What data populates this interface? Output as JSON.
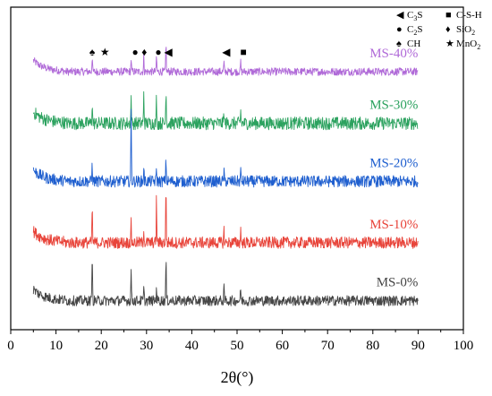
{
  "chart_data": {
    "type": "line",
    "xlabel": "2θ(°)",
    "ylabel": "",
    "title": "",
    "xlim": [
      0,
      100
    ],
    "x_ticks": [
      0,
      10,
      20,
      30,
      40,
      50,
      60,
      70,
      80,
      90,
      100
    ],
    "y_ticks_shown": false,
    "grid": false,
    "x_range_measured": [
      5,
      90
    ],
    "series": [
      {
        "name": "MS-40%",
        "color": "#b06ad8",
        "baseline": 0.8,
        "noise": 0.012,
        "peaks": [
          [
            18.0,
            0.05
          ],
          [
            26.6,
            0.04
          ],
          [
            29.4,
            0.05
          ],
          [
            32.2,
            0.05
          ],
          [
            34.3,
            0.09
          ],
          [
            47.1,
            0.03
          ],
          [
            50.8,
            0.03
          ]
        ]
      },
      {
        "name": "MS-30%",
        "color": "#2ca25f",
        "baseline": 0.64,
        "noise": 0.02,
        "peaks": [
          [
            18.0,
            0.07
          ],
          [
            26.6,
            0.08
          ],
          [
            29.4,
            0.1
          ],
          [
            32.2,
            0.08
          ],
          [
            34.3,
            0.12
          ],
          [
            47.1,
            0.04
          ],
          [
            50.8,
            0.04
          ]
        ]
      },
      {
        "name": "MS-20%",
        "color": "#1f5fcf",
        "baseline": 0.46,
        "noise": 0.018,
        "peaks": [
          [
            18.0,
            0.06
          ],
          [
            26.6,
            0.22
          ],
          [
            29.4,
            0.05
          ],
          [
            32.2,
            0.04
          ],
          [
            34.3,
            0.07
          ],
          [
            47.1,
            0.03
          ],
          [
            50.8,
            0.03
          ]
        ]
      },
      {
        "name": "MS-10%",
        "color": "#e8443a",
        "baseline": 0.27,
        "noise": 0.018,
        "peaks": [
          [
            18.0,
            0.12
          ],
          [
            26.6,
            0.06
          ],
          [
            29.4,
            0.05
          ],
          [
            32.2,
            0.14
          ],
          [
            34.3,
            0.18
          ],
          [
            47.1,
            0.04
          ],
          [
            50.8,
            0.04
          ]
        ]
      },
      {
        "name": "MS-0%",
        "color": "#454545",
        "baseline": 0.09,
        "noise": 0.016,
        "peaks": [
          [
            18.0,
            0.16
          ],
          [
            26.6,
            0.1
          ],
          [
            29.4,
            0.04
          ],
          [
            32.2,
            0.05
          ],
          [
            34.3,
            0.13
          ],
          [
            47.1,
            0.04
          ],
          [
            50.8,
            0.04
          ]
        ]
      }
    ],
    "phase_markers": [
      {
        "symbol": "♠",
        "x": 18.0
      },
      {
        "symbol": "★",
        "x": 20.8
      },
      {
        "symbol": "●",
        "x": 27.5
      },
      {
        "symbol": "♦",
        "x": 29.5
      },
      {
        "symbol": "●",
        "x": 32.6
      },
      {
        "symbol": "◀",
        "x": 34.8
      },
      {
        "symbol": "◀",
        "x": 47.6
      },
      {
        "symbol": "■",
        "x": 51.4
      }
    ],
    "legend": {
      "placement": "top-right",
      "entries": [
        {
          "symbol": "◀",
          "label": "C",
          "sub": "3",
          "suffix": "S"
        },
        {
          "symbol": "■",
          "label": "C-S-H",
          "sub": "",
          "suffix": ""
        },
        {
          "symbol": "●",
          "label": "C",
          "sub": "2",
          "suffix": "S"
        },
        {
          "symbol": "♦",
          "label": "SiO",
          "sub": "2",
          "suffix": ""
        },
        {
          "symbol": "♠",
          "label": "CH",
          "sub": "",
          "suffix": ""
        },
        {
          "symbol": "★",
          "label": "MnO",
          "sub": "2",
          "suffix": ""
        }
      ]
    }
  }
}
